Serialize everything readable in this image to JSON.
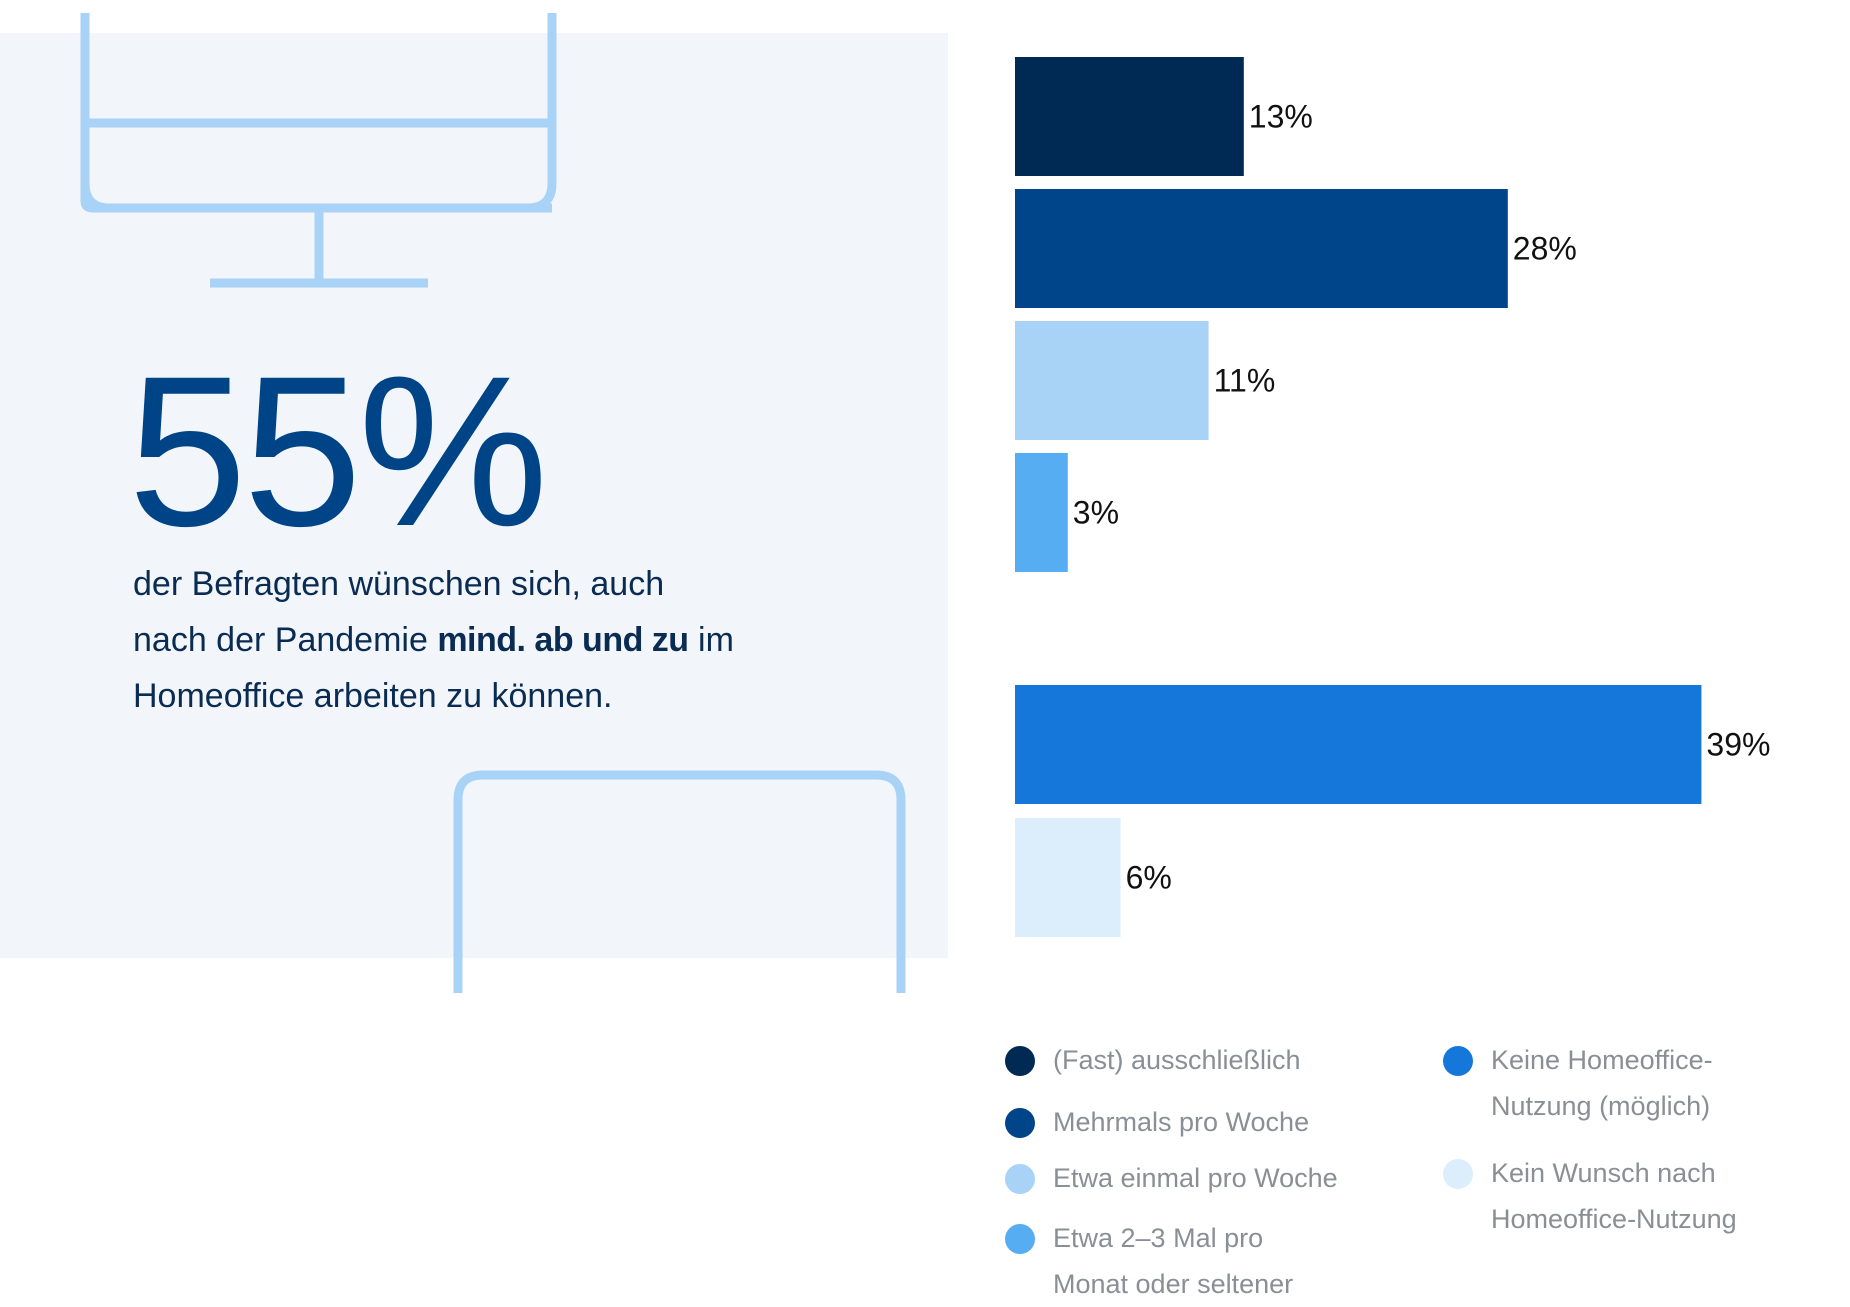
{
  "headline": {
    "big_number": "55%",
    "line1": "der Befragten wünschen sich, auch",
    "line2_pre": "nach der Pandemie ",
    "line2_bold": "mind. ab und zu",
    "line2_post": " im",
    "line3": "Homeoffice arbeiten zu können."
  },
  "chart_data": {
    "type": "bar",
    "orientation": "horizontal",
    "title": "",
    "xlabel": "",
    "ylabel": "",
    "xlim": [
      0,
      39
    ],
    "grid": false,
    "legend_position": "bottom",
    "series": [
      {
        "name": "(Fast) ausschließlich",
        "value": 13,
        "label": "13%",
        "color": "#002a54"
      },
      {
        "name": "Mehrmals pro Woche",
        "value": 28,
        "label": "28%",
        "color": "#004589"
      },
      {
        "name": "Etwa einmal pro Woche",
        "value": 11,
        "label": "11%",
        "color": "#a8d3f7"
      },
      {
        "name": "Etwa 2–3 Mal pro Monat oder seltener",
        "value": 3,
        "label": "3%",
        "color": "#56adf2"
      },
      {
        "name": "Keine Homeoffice-Nutzung (möglich)",
        "value": 39,
        "label": "39%",
        "color": "#1677db"
      },
      {
        "name": "Kein Wunsch nach Homeoffice-Nutzung",
        "value": 6,
        "label": "6%",
        "color": "#dceefc"
      }
    ]
  },
  "legend": {
    "items": [
      {
        "line1": "(Fast) ausschließlich",
        "line2": "",
        "color": "#002a54"
      },
      {
        "line1": "Mehrmals pro Woche",
        "line2": "",
        "color": "#004589"
      },
      {
        "line1": "Etwa einmal pro Woche",
        "line2": "",
        "color": "#a8d3f7"
      },
      {
        "line1": "Etwa 2–3 Mal pro",
        "line2": "Monat oder seltener",
        "color": "#56adf2"
      },
      {
        "line1": "Keine Homeoffice-",
        "line2": "Nutzung (möglich)",
        "color": "#1677db"
      },
      {
        "line1": "Kein Wunsch nach",
        "line2": "Homeoffice-Nutzung",
        "color": "#dceefc"
      }
    ]
  },
  "decoration": {
    "icon_color": "#a8d3f7",
    "icons": [
      "monitor-icon",
      "tablet-icon"
    ]
  }
}
